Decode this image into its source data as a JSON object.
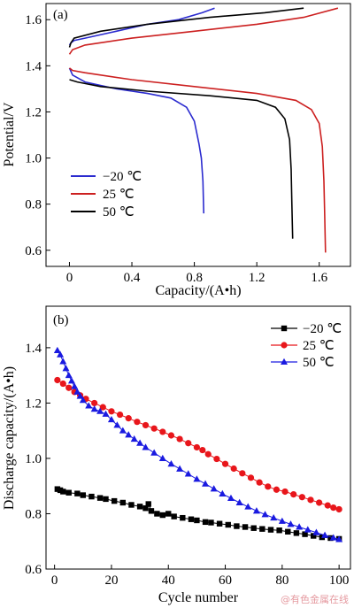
{
  "watermark": "@有色金属在线",
  "chart_data": [
    {
      "type": "line",
      "panel_label": "(a)",
      "xlabel": "Capacity/(A•h)",
      "ylabel": "Potential/V",
      "xlim": [
        -0.15,
        1.8
      ],
      "ylim": [
        0.53,
        1.67
      ],
      "xticks": [
        "0",
        "0.4",
        "0.8",
        "1.2",
        "1.6"
      ],
      "xtick_values": [
        0,
        0.4,
        0.8,
        1.2,
        1.6
      ],
      "yticks": [
        "0.6",
        "0.8",
        "1.0",
        "1.2",
        "1.4",
        "1.6"
      ],
      "ytick_values": [
        0.6,
        0.8,
        1.0,
        1.2,
        1.4,
        1.6
      ],
      "legend_position": "bottom-left",
      "series": [
        {
          "name": "−20 ℃",
          "color": "#2b2bcf",
          "charge": [
            [
              0,
              1.49
            ],
            [
              0.01,
              1.5
            ],
            [
              0.03,
              1.51
            ],
            [
              0.1,
              1.52
            ],
            [
              0.3,
              1.55
            ],
            [
              0.5,
              1.58
            ],
            [
              0.7,
              1.6
            ],
            [
              0.85,
              1.63
            ],
            [
              0.93,
              1.65
            ]
          ],
          "discharge": [
            [
              0,
              1.39
            ],
            [
              0.02,
              1.36
            ],
            [
              0.1,
              1.33
            ],
            [
              0.3,
              1.3
            ],
            [
              0.5,
              1.28
            ],
            [
              0.65,
              1.26
            ],
            [
              0.75,
              1.22
            ],
            [
              0.8,
              1.16
            ],
            [
              0.83,
              1.06
            ],
            [
              0.845,
              1.0
            ],
            [
              0.855,
              0.9
            ],
            [
              0.86,
              0.76
            ]
          ]
        },
        {
          "name": "25 ℃",
          "color": "#cc2020",
          "charge": [
            [
              0,
              1.45
            ],
            [
              0.02,
              1.47
            ],
            [
              0.1,
              1.49
            ],
            [
              0.4,
              1.52
            ],
            [
              0.8,
              1.55
            ],
            [
              1.2,
              1.58
            ],
            [
              1.5,
              1.61
            ],
            [
              1.72,
              1.65
            ]
          ],
          "discharge": [
            [
              0,
              1.39
            ],
            [
              0.02,
              1.38
            ],
            [
              0.1,
              1.37
            ],
            [
              0.4,
              1.34
            ],
            [
              0.8,
              1.31
            ],
            [
              1.2,
              1.28
            ],
            [
              1.45,
              1.25
            ],
            [
              1.55,
              1.21
            ],
            [
              1.6,
              1.15
            ],
            [
              1.62,
              1.05
            ],
            [
              1.63,
              0.9
            ],
            [
              1.635,
              0.75
            ],
            [
              1.64,
              0.59
            ]
          ]
        },
        {
          "name": "50 ℃",
          "color": "#000000",
          "charge": [
            [
              0,
              1.48
            ],
            [
              0.01,
              1.5
            ],
            [
              0.03,
              1.52
            ],
            [
              0.2,
              1.55
            ],
            [
              0.5,
              1.58
            ],
            [
              0.9,
              1.61
            ],
            [
              1.25,
              1.63
            ],
            [
              1.5,
              1.65
            ]
          ],
          "discharge": [
            [
              0,
              1.34
            ],
            [
              0.05,
              1.33
            ],
            [
              0.2,
              1.31
            ],
            [
              0.5,
              1.29
            ],
            [
              0.9,
              1.27
            ],
            [
              1.2,
              1.25
            ],
            [
              1.32,
              1.22
            ],
            [
              1.38,
              1.17
            ],
            [
              1.41,
              1.08
            ],
            [
              1.42,
              0.95
            ],
            [
              1.425,
              0.8
            ],
            [
              1.43,
              0.65
            ]
          ]
        }
      ]
    },
    {
      "type": "scatter",
      "panel_label": "(b)",
      "xlabel": "Cycle number",
      "ylabel": "Discharge capacity/(A•h)",
      "xlim": [
        -3,
        104
      ],
      "ylim": [
        0.6,
        1.55
      ],
      "xticks": [
        "0",
        "20",
        "40",
        "60",
        "80",
        "100"
      ],
      "xtick_values": [
        0,
        20,
        40,
        60,
        80,
        100
      ],
      "yticks": [
        "0.6",
        "0.8",
        "1.0",
        "1.2",
        "1.4"
      ],
      "ytick_values": [
        0.6,
        0.8,
        1.0,
        1.2,
        1.4
      ],
      "legend_position": "top-right",
      "series": [
        {
          "name": "−20 ℃",
          "color": "#000000",
          "marker": "square",
          "x": [
            1,
            2,
            3,
            5,
            8,
            10,
            13,
            16,
            18,
            21,
            24,
            27,
            30,
            32,
            33,
            34,
            36,
            38,
            40,
            42,
            45,
            48,
            50,
            53,
            55,
            58,
            61,
            64,
            67,
            70,
            73,
            76,
            79,
            82,
            85,
            88,
            91,
            94,
            97,
            100
          ],
          "y": [
            0.889,
            0.885,
            0.88,
            0.876,
            0.873,
            0.867,
            0.862,
            0.857,
            0.853,
            0.846,
            0.84,
            0.832,
            0.826,
            0.82,
            0.835,
            0.81,
            0.8,
            0.795,
            0.8,
            0.79,
            0.785,
            0.78,
            0.776,
            0.77,
            0.768,
            0.764,
            0.76,
            0.755,
            0.752,
            0.748,
            0.745,
            0.742,
            0.74,
            0.735,
            0.73,
            0.726,
            0.72,
            0.715,
            0.712,
            0.709
          ]
        },
        {
          "name": "25 ℃",
          "color": "#e8161b",
          "marker": "circle",
          "x": [
            1,
            3,
            5,
            7,
            9,
            11,
            14,
            17,
            20,
            23,
            26,
            29,
            32,
            35,
            38,
            41,
            44,
            47,
            50,
            52,
            54,
            57,
            60,
            63,
            66,
            69,
            72,
            75,
            78,
            81,
            84,
            87,
            90,
            93,
            96,
            98,
            100
          ],
          "y": [
            1.283,
            1.27,
            1.255,
            1.24,
            1.228,
            1.215,
            1.2,
            1.185,
            1.17,
            1.158,
            1.145,
            1.132,
            1.12,
            1.108,
            1.096,
            1.083,
            1.07,
            1.055,
            1.04,
            1.03,
            1.015,
            0.998,
            0.98,
            0.963,
            0.946,
            0.93,
            0.913,
            0.898,
            0.887,
            0.88,
            0.87,
            0.86,
            0.85,
            0.84,
            0.83,
            0.822,
            0.816
          ]
        },
        {
          "name": "50 ℃",
          "color": "#1a1ae0",
          "marker": "triangle",
          "x": [
            1,
            2,
            3,
            4,
            5,
            6,
            7,
            8,
            9,
            10,
            12,
            14,
            16,
            18,
            20,
            22,
            24,
            26,
            28,
            30,
            32,
            35,
            38,
            41,
            44,
            47,
            50,
            53,
            56,
            59,
            62,
            65,
            68,
            71,
            74,
            77,
            80,
            83,
            86,
            89,
            92,
            95,
            98,
            100
          ],
          "y": [
            1.39,
            1.375,
            1.35,
            1.325,
            1.3,
            1.28,
            1.26,
            1.24,
            1.225,
            1.21,
            1.19,
            1.178,
            1.17,
            1.16,
            1.14,
            1.12,
            1.1,
            1.085,
            1.07,
            1.055,
            1.04,
            1.02,
            1.0,
            0.98,
            0.962,
            0.944,
            0.925,
            0.908,
            0.89,
            0.872,
            0.856,
            0.84,
            0.825,
            0.81,
            0.797,
            0.785,
            0.773,
            0.762,
            0.752,
            0.742,
            0.732,
            0.722,
            0.713,
            0.707
          ]
        }
      ]
    }
  ]
}
